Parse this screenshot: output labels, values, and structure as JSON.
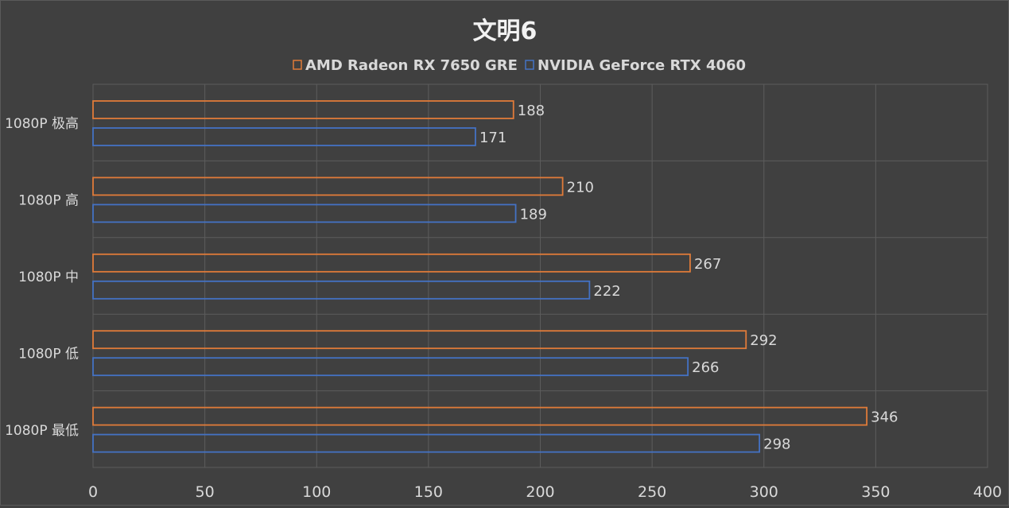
{
  "chart_data": {
    "type": "bar",
    "orientation": "horizontal",
    "title": "文明6",
    "categories": [
      "1080P 极高",
      "1080P 高",
      "1080P 中",
      "1080P 低",
      "1080P 最低"
    ],
    "series": [
      {
        "name": "AMD Radeon RX 7650 GRE",
        "values": [
          188,
          210,
          267,
          292,
          346
        ],
        "color": "#e07b39"
      },
      {
        "name": "NVIDIA GeForce RTX 4060",
        "values": [
          171,
          189,
          222,
          266,
          298
        ],
        "color": "#4472c4"
      }
    ],
    "xlim": [
      0,
      400
    ],
    "xticks": [
      0,
      50,
      100,
      150,
      200,
      250,
      300,
      350,
      400
    ],
    "xlabel": "",
    "ylabel": "",
    "grid": true,
    "legend": "top-center",
    "colors": {
      "background": "#404040",
      "grid": "#5c5c5c",
      "text": "#d9d9d9",
      "title": "#f2f2f2"
    }
  }
}
